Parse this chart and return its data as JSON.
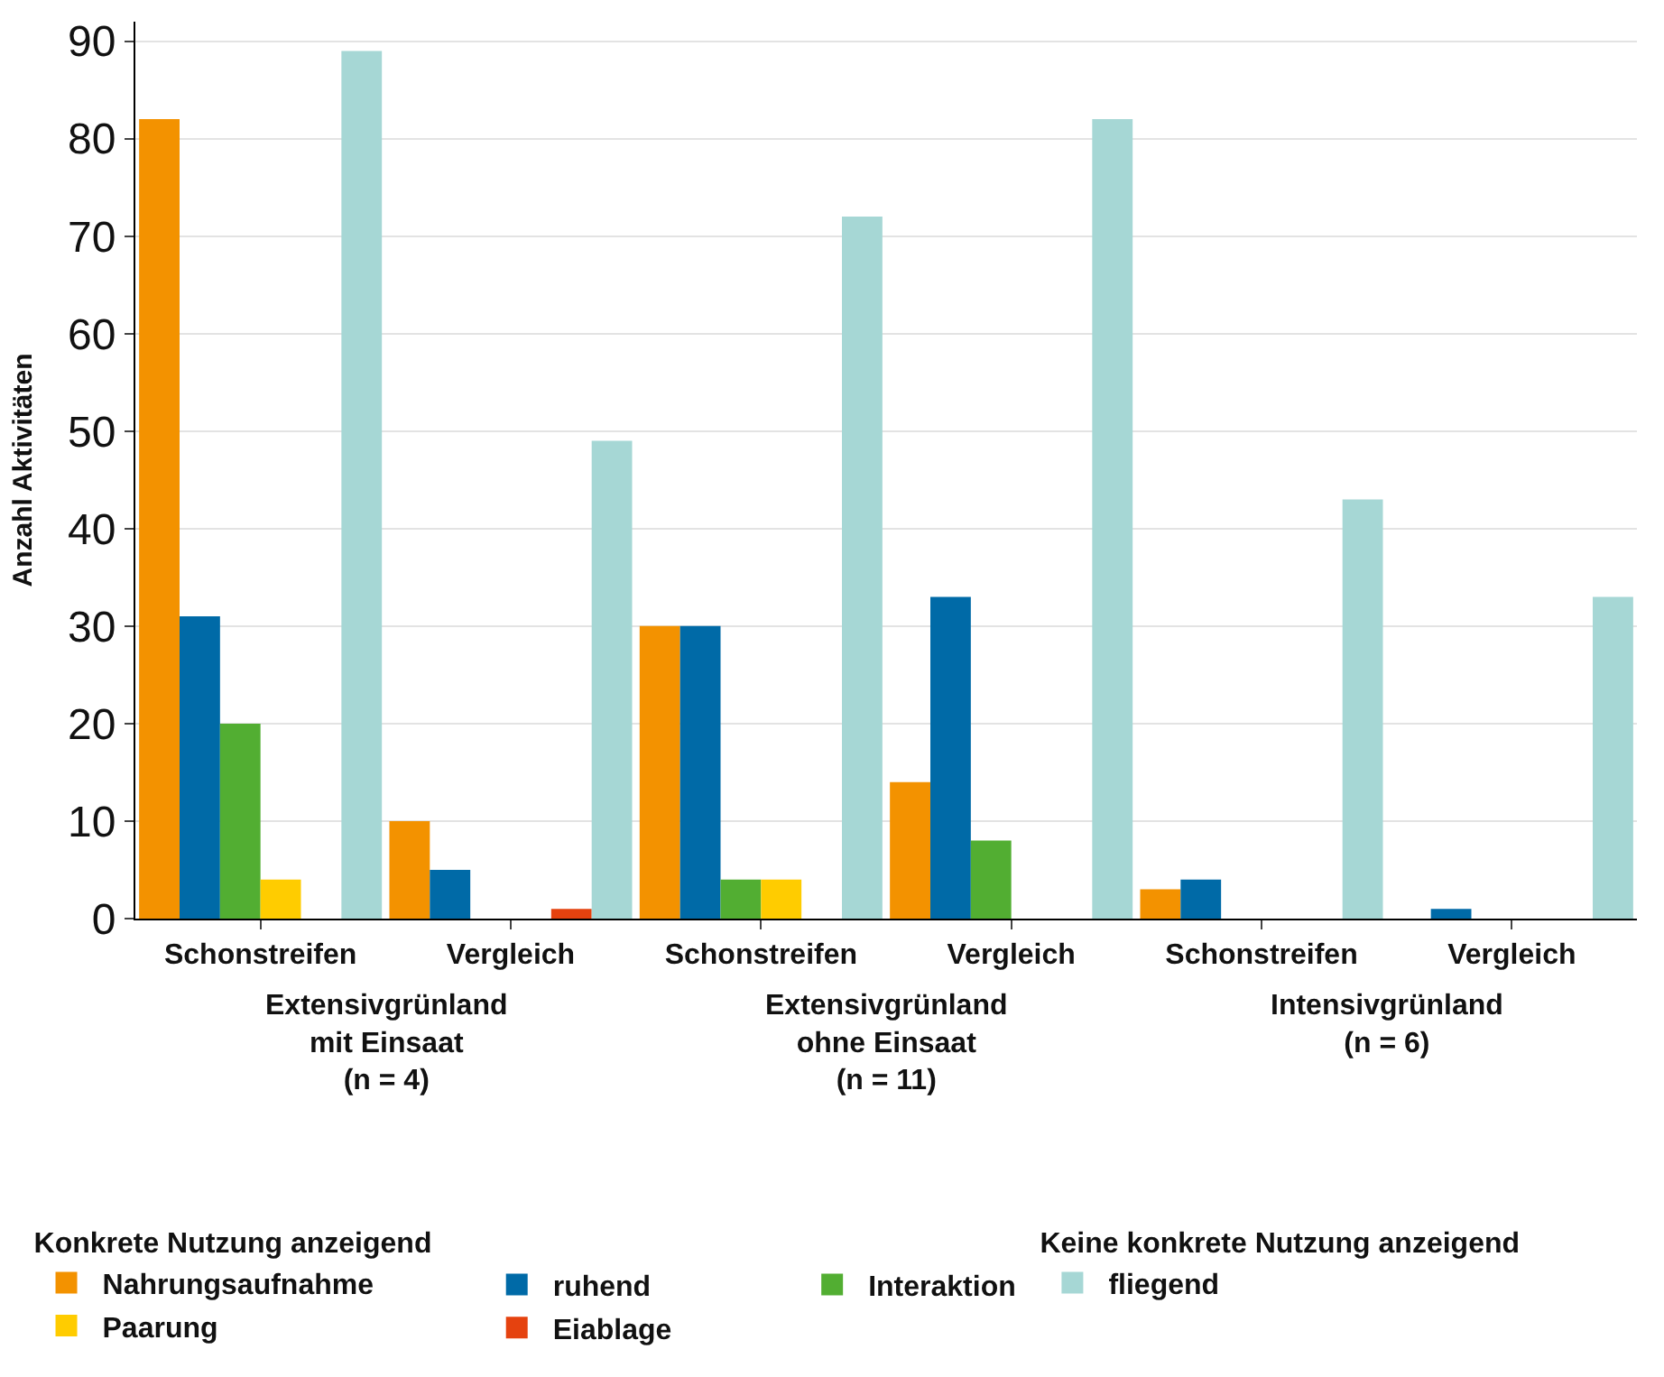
{
  "chart_data": {
    "type": "bar",
    "ylabel": "Anzahl Aktivitäten",
    "categories": [
      "Schonstreifen",
      "Vergleich",
      "Schonstreifen",
      "Vergleich",
      "Schonstreifen",
      "Vergleich"
    ],
    "annotations": [
      "Extensivgrünland\nmit Einsaat\n(n = 4)",
      "Extensivgrünland\nohne Einsaat\n(n = 11)",
      "Intensivgrünland\n(n = 6)"
    ],
    "legend_title": [
      "Konkrete Nutzung anzeigend",
      "Keine konkrete Nutzung anzeigend"
    ],
    "series": [
      {
        "name": "Nahrungsaufnahme",
        "color": "#f39200",
        "values": [
          82,
          10,
          30,
          14,
          3,
          0
        ]
      },
      {
        "name": "ruhend",
        "color": "#006aa7",
        "values": [
          31,
          5,
          30,
          33,
          4,
          1
        ]
      },
      {
        "name": "Interaktion",
        "color": "#52ae32",
        "values": [
          20,
          0,
          4,
          8,
          0,
          0
        ]
      },
      {
        "name": "Paarung",
        "color": "#ffcc00",
        "values": [
          4,
          0,
          4,
          0,
          0,
          0
        ]
      },
      {
        "name": "Eiablage",
        "color": "#e5420f",
        "values": [
          0,
          1,
          0,
          0,
          0,
          0
        ]
      },
      {
        "name": "fliegend",
        "color": "#a6d7d5",
        "values": [
          89,
          49,
          72,
          82,
          43,
          33
        ]
      }
    ],
    "ylim": [
      0,
      92
    ],
    "yticks": [
      0,
      10,
      20,
      30,
      40,
      50,
      60,
      70,
      80,
      90
    ],
    "grid": "y",
    "legend": "bottom"
  }
}
